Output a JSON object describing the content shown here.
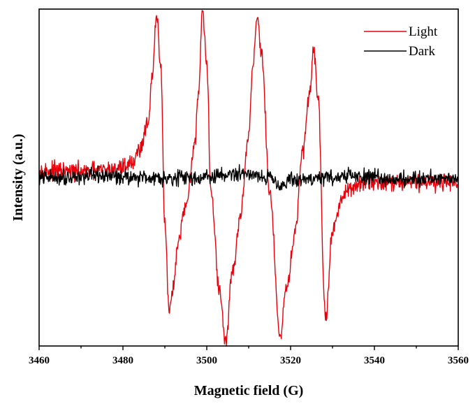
{
  "chart_data": {
    "type": "line",
    "xlabel": "Magnetic field (G)",
    "ylabel": "Intensity (a.u.)",
    "xlim": [
      3460,
      3560
    ],
    "ylim": [
      -1.2,
      1.2
    ],
    "x_ticks": [
      3460,
      3480,
      3500,
      3520,
      3540,
      3560
    ],
    "x_tick_labels": [
      "3460",
      "3480",
      "3500",
      "3520",
      "3540",
      "3560"
    ],
    "y_ticks_shown": false,
    "grid": false,
    "legend_position": "top-right",
    "series": [
      {
        "name": "Light",
        "color": "#e8000b",
        "noise": 0.05,
        "x": [
          3460,
          3470,
          3478,
          3482,
          3484,
          3486,
          3487,
          3488,
          3489,
          3490,
          3491,
          3492,
          3493,
          3495,
          3497,
          3498,
          3499,
          3500,
          3501,
          3503,
          3504.5,
          3506,
          3508,
          3510,
          3511,
          3512,
          3513,
          3515,
          3517.5,
          3519,
          3521,
          3523,
          3524.5,
          3525.5,
          3526.5,
          3528.3,
          3530,
          3532,
          3535,
          3540,
          3560
        ],
        "y": [
          0.05,
          0.04,
          0.06,
          0.1,
          0.2,
          0.4,
          0.7,
          1.15,
          0.8,
          -0.3,
          -0.95,
          -0.8,
          -0.5,
          -0.2,
          0.2,
          0.6,
          1.2,
          0.8,
          -0.1,
          -0.8,
          -1.18,
          -0.7,
          -0.3,
          0.3,
          0.8,
          1.15,
          0.9,
          -0.1,
          -1.15,
          -0.8,
          -0.4,
          0.2,
          0.6,
          0.92,
          0.6,
          -1.0,
          -0.4,
          -0.15,
          -0.06,
          -0.03,
          -0.03
        ]
      },
      {
        "name": "Dark",
        "color": "#000000",
        "noise": 0.045,
        "x": [
          3460,
          3475,
          3490,
          3500,
          3505,
          3510,
          3515,
          3518,
          3520,
          3528,
          3535,
          3545,
          3560
        ],
        "y": [
          0.0,
          0.01,
          0.0,
          0.0,
          0.02,
          0.03,
          0.0,
          -0.05,
          -0.02,
          0.0,
          0.01,
          -0.01,
          0.0
        ]
      }
    ]
  }
}
